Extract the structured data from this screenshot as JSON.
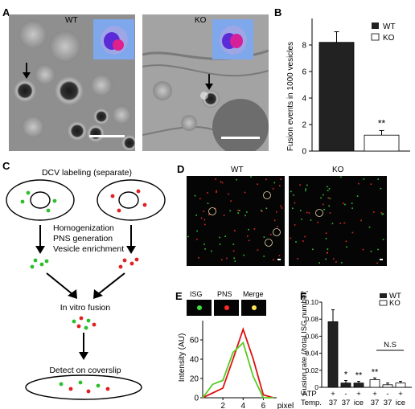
{
  "panels": {
    "A": "A",
    "B": "B",
    "C": "C",
    "D": "D",
    "E": "E",
    "F": "F"
  },
  "panelA": {
    "wt_label": "WT",
    "ko_label": "KO"
  },
  "panelB": {
    "legend": {
      "wt": "WT",
      "ko": "KO"
    },
    "significance": "**"
  },
  "panelC": {
    "title": "DCV labeling (separate)",
    "step1_lines": [
      "Homogenization",
      "PNS generation",
      "Vesicle enrichment"
    ],
    "step2": "In vitro fusion",
    "step3": "Detect on coverslip"
  },
  "panelD": {
    "wt_label": "WT",
    "ko_label": "KO"
  },
  "panelE": {
    "tabs": [
      "ISG",
      "PNS",
      "Merge"
    ]
  },
  "panelF": {
    "legend": {
      "wt": "WT",
      "ko": "KO"
    },
    "atp_label": "ATP",
    "temp_label": "Temp.",
    "atp_values": [
      "+",
      "-",
      "+",
      "+",
      "-",
      "+"
    ],
    "temp_values": [
      "37",
      "37",
      "ice",
      "37",
      "37",
      "ice"
    ],
    "significance": [
      "",
      "*",
      "**",
      "**"
    ],
    "ns_label": "N.S"
  },
  "colors": {
    "wt_bar": "#222222",
    "ko_bar": "#ffffff",
    "red_line": "#dd1111",
    "green_line": "#55cc22"
  },
  "chart_data": [
    {
      "type": "bar",
      "categories": [
        "WT",
        "KO"
      ],
      "values": [
        8.2,
        1.2
      ],
      "errors": [
        0.8,
        0.35
      ],
      "ylabel": "Fusion events in 1000 vesicles",
      "ylim": [
        0,
        10
      ],
      "yticks": [
        0,
        2,
        4,
        6,
        8
      ]
    },
    {
      "type": "line",
      "x": [
        0,
        1,
        2,
        3,
        4,
        5,
        6,
        7
      ],
      "xticks": [
        2,
        4,
        6
      ],
      "xlabel": "pixel",
      "ylabel": "Intensity (AU)",
      "ylim": [
        0,
        80
      ],
      "yticks": [
        0,
        20,
        40,
        60
      ],
      "series": [
        {
          "color": "#dd1111",
          "values": [
            0,
            5,
            10,
            40,
            71,
            40,
            3,
            0
          ]
        },
        {
          "color": "#55cc22",
          "values": [
            0,
            14,
            18,
            47,
            57,
            22,
            0,
            0
          ]
        }
      ]
    },
    {
      "type": "bar",
      "ylabel": "Fusion rate (/total ISG number)",
      "ylim": [
        0,
        0.1
      ],
      "yticks": [
        "0",
        "0.02",
        "0.04",
        "0.06",
        "0.08",
        "0.10"
      ],
      "series": [
        {
          "name": "WT",
          "values": [
            0.077,
            0.005,
            0.005
          ],
          "errors": [
            0.014,
            0.003,
            0.002
          ]
        },
        {
          "name": "KO",
          "values": [
            0.009,
            0.003,
            0.005
          ],
          "errors": [
            0.002,
            0.002,
            0.002
          ]
        }
      ]
    }
  ]
}
